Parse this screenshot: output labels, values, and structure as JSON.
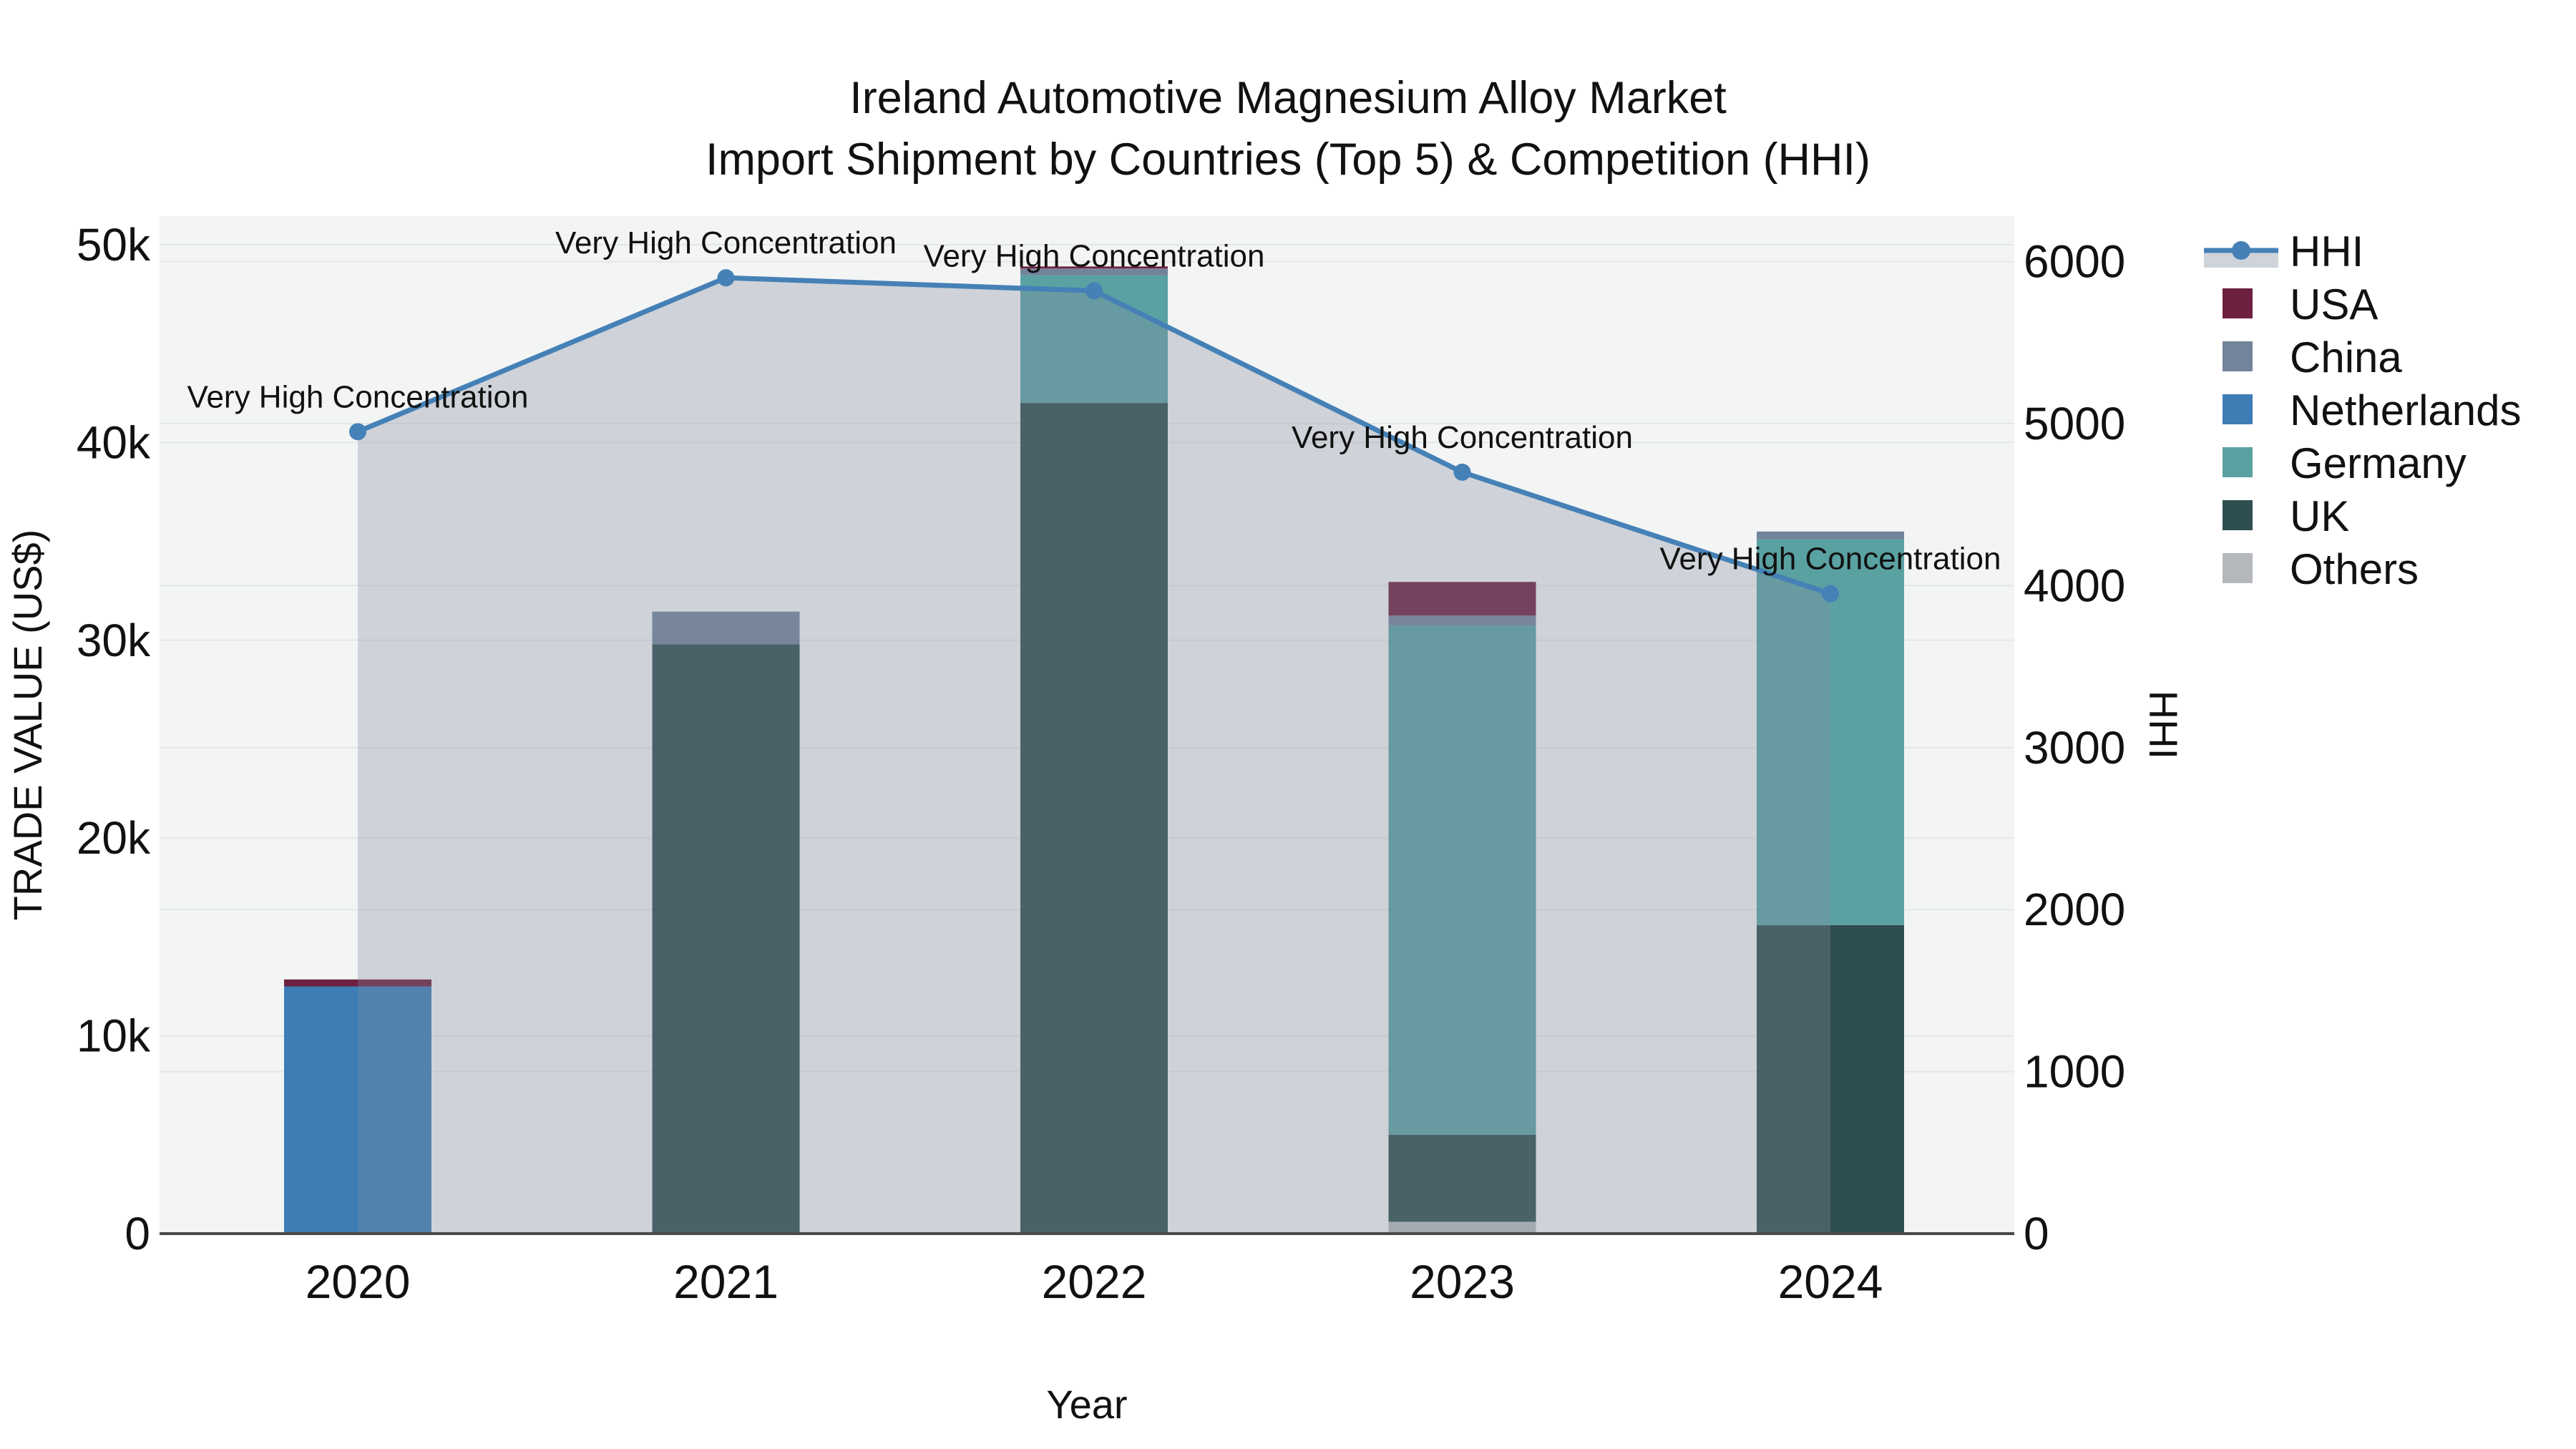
{
  "title": {
    "line1": "Ireland Automotive Magnesium Alloy Market",
    "line2": "Import Shipment by Countries (Top 5) & Competition (HHI)"
  },
  "legend": {
    "position": "right",
    "items": [
      {
        "label": "HHI",
        "type": "line+area",
        "color": "#4581b6",
        "band_color": "#cfd3da"
      },
      {
        "label": "USA",
        "type": "bar",
        "color": "#6d2040"
      },
      {
        "label": "China",
        "type": "bar",
        "color": "#72849a"
      },
      {
        "label": "Netherlands",
        "type": "bar",
        "color": "#3d7cb5"
      },
      {
        "label": "Germany",
        "type": "bar",
        "color": "#5aa1a2"
      },
      {
        "label": "UK",
        "type": "bar",
        "color": "#2e4e4f"
      },
      {
        "label": "Others",
        "type": "bar",
        "color": "#b4b8bb"
      }
    ]
  },
  "chart_data": {
    "type": "bar+line",
    "title": "Ireland Automotive Magnesium Alloy Market — Import Shipment by Countries (Top 5) & Competition (HHI)",
    "categories": [
      "2020",
      "2021",
      "2022",
      "2023",
      "2024"
    ],
    "x_title": "Year",
    "y_left": {
      "label": "TRADE VALUE (US$)",
      "range": [
        0,
        50000
      ],
      "tick_values": [
        0,
        10000,
        20000,
        30000,
        40000,
        50000
      ],
      "tick_labels": [
        "0",
        "10k",
        "20k",
        "30k",
        "40k",
        "50k"
      ]
    },
    "y_right": {
      "label": "HHI",
      "range": [
        0,
        6000
      ],
      "tick_values": [
        0,
        1000,
        2000,
        3000,
        4000,
        5000,
        6000
      ],
      "tick_labels": [
        "0",
        "1000",
        "2000",
        "3000",
        "4000",
        "5000",
        "6000"
      ]
    },
    "grid": true,
    "legend_position": "right",
    "series": [
      {
        "name": "USA",
        "type": "bar",
        "color": "#6d2040",
        "values": [
          350,
          0,
          100,
          1700,
          0
        ]
      },
      {
        "name": "China",
        "type": "bar",
        "color": "#72849a",
        "values": [
          0,
          1650,
          350,
          500,
          400
        ]
      },
      {
        "name": "Netherlands",
        "type": "bar",
        "color": "#3d7cb5",
        "values": [
          12500,
          0,
          0,
          0,
          0
        ]
      },
      {
        "name": "Germany",
        "type": "bar",
        "color": "#5aa1a2",
        "values": [
          0,
          0,
          6450,
          25750,
          19500
        ]
      },
      {
        "name": "UK",
        "type": "bar",
        "color": "#2e4e4f",
        "values": [
          0,
          29800,
          42000,
          4400,
          15600
        ]
      },
      {
        "name": "Others",
        "type": "bar",
        "color": "#b4b8bb",
        "values": [
          0,
          0,
          0,
          600,
          0
        ]
      }
    ],
    "stack_order": [
      "Others",
      "UK",
      "Germany",
      "Netherlands",
      "China",
      "USA"
    ],
    "bar_totals": [
      12850,
      31450,
      48900,
      32950,
      35500
    ],
    "line_series": {
      "name": "HHI",
      "axis": "right",
      "color": "#4581b6",
      "area_fill": "rgba(130,140,160,0.32)",
      "values": [
        4950,
        5900,
        5820,
        4700,
        3950
      ]
    },
    "annotations": [
      {
        "text": "Very High Concentration",
        "category": "2020",
        "value": 4950
      },
      {
        "text": "Very High Concentration",
        "category": "2021",
        "value": 5900
      },
      {
        "text": "Very High Concentration",
        "category": "2022",
        "value": 5820
      },
      {
        "text": "Very High Concentration",
        "category": "2023",
        "value": 4700
      },
      {
        "text": "Very High Concentration",
        "category": "2024",
        "value": 3950
      }
    ],
    "colors": {
      "plot_background": "#f3f4f4",
      "gridline": "#e4e7e8",
      "axis_line": "#4a4a4a",
      "text": "#111111"
    }
  }
}
